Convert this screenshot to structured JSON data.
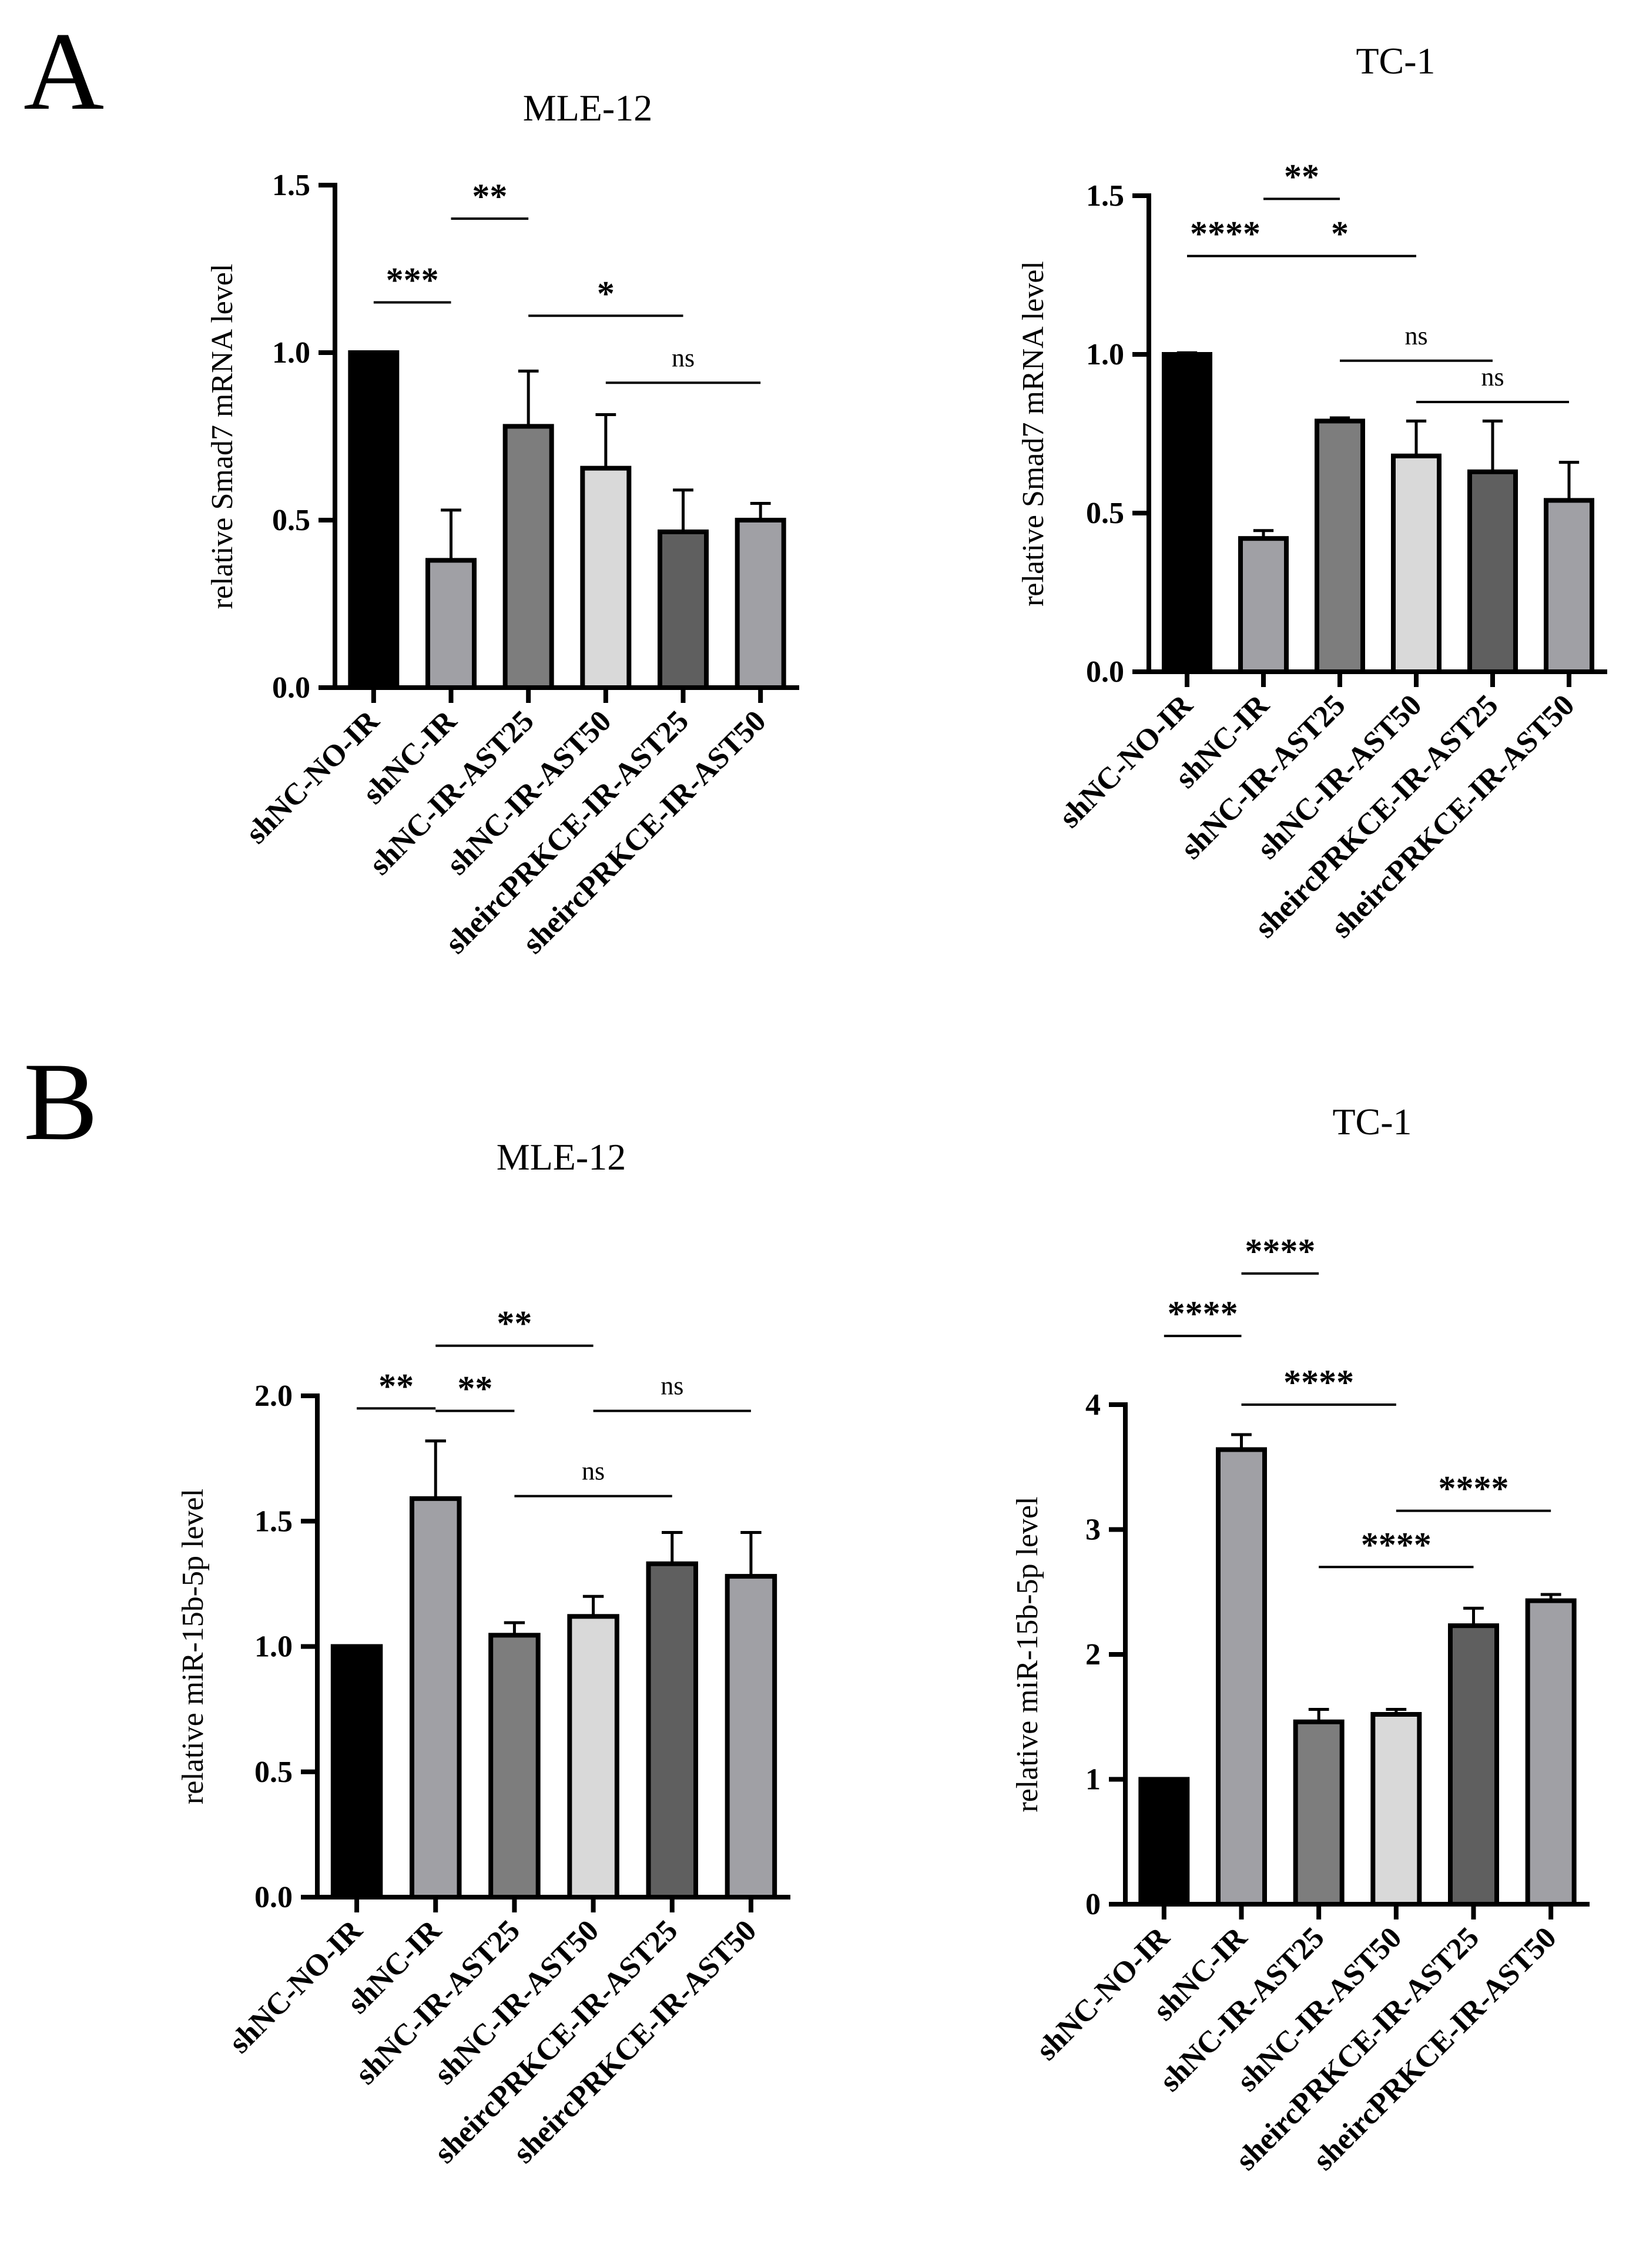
{
  "panels": [
    {
      "letter": "A"
    },
    {
      "letter": "B"
    }
  ],
  "chart_data": [
    {
      "type": "bar",
      "panel": "A",
      "title": "MLE-12",
      "ylabel": "relative Smad7 mRNA level",
      "xlabel": "",
      "ylim": [
        0,
        1.5
      ],
      "yticks": [
        0.0,
        0.5,
        1.0,
        1.5
      ],
      "ytick_labels": [
        "0.0",
        "0.5",
        "1.0",
        "1.5"
      ],
      "categories": [
        "shNC-NO-IR",
        "shNC-IR",
        "shNC-IR-AST25",
        "shNC-IR-AST50",
        "sheircPRKCE-IR-AST25",
        "sheircPRKCE-IR-AST50"
      ],
      "values": [
        1.0,
        0.38,
        0.78,
        0.655,
        0.465,
        0.5
      ],
      "errors": [
        0.0,
        0.15,
        0.165,
        0.16,
        0.125,
        0.05
      ],
      "colors": [
        "#000000",
        "#a0a0a5",
        "#7d7d7d",
        "#d9d9d9",
        "#5f5f5f",
        "#a0a0a5"
      ],
      "significance": [
        {
          "from": 0,
          "to": 1,
          "label": "***",
          "y": 1.15
        },
        {
          "from": 1,
          "to": 2,
          "label": "**",
          "y": 1.4
        },
        {
          "from": 2,
          "to": 4,
          "label": "*",
          "y": 1.11
        },
        {
          "from": 3,
          "to": 5,
          "label": "ns",
          "y": 0.91
        }
      ]
    },
    {
      "type": "bar",
      "panel": "A",
      "title": "TC-1",
      "ylabel": "relative Smad7 mRNA level",
      "xlabel": "",
      "ylim": [
        0,
        1.5
      ],
      "yticks": [
        0.0,
        0.5,
        1.0,
        1.5
      ],
      "ytick_labels": [
        "0.0",
        "0.5",
        "1.0",
        "1.5"
      ],
      "categories": [
        "shNC-NO-IR",
        "shNC-IR",
        "shNC-IR-AST25",
        "shNC-IR-AST50",
        "sheircPRKCE-IR-AST25",
        "sheircPRKCE-IR-AST50"
      ],
      "values": [
        1.0,
        0.42,
        0.79,
        0.68,
        0.63,
        0.54
      ],
      "errors": [
        0.005,
        0.025,
        0.01,
        0.11,
        0.16,
        0.12
      ],
      "colors": [
        "#000000",
        "#a0a0a5",
        "#7d7d7d",
        "#d9d9d9",
        "#5f5f5f",
        "#a0a0a5"
      ],
      "significance": [
        {
          "from": 0,
          "to": 1,
          "label": "****",
          "y": 1.31
        },
        {
          "from": 1,
          "to": 2,
          "label": "**",
          "y": 1.49
        },
        {
          "from": 1,
          "to": 3,
          "label": "*",
          "y": 1.31
        },
        {
          "from": 2,
          "to": 4,
          "label": "ns",
          "y": 0.98
        },
        {
          "from": 3,
          "to": 5,
          "label": "ns",
          "y": 0.85
        }
      ]
    },
    {
      "type": "bar",
      "panel": "B",
      "title": "MLE-12",
      "ylabel": "relative miR-15b-5p level",
      "xlabel": "",
      "ylim": [
        0,
        2.0
      ],
      "yticks": [
        0.0,
        0.5,
        1.0,
        1.5,
        2.0
      ],
      "ytick_labels": [
        "0.0",
        "0.5",
        "1.0",
        "1.5",
        "2.0"
      ],
      "categories": [
        "shNC-NO-IR",
        "shNC-IR",
        "shNC-IR-AST25",
        "shNC-IR-AST50",
        "sheircPRKCE-IR-AST25",
        "sheircPRKCE-IR-AST50"
      ],
      "values": [
        1.0,
        1.59,
        1.045,
        1.12,
        1.33,
        1.28
      ],
      "errors": [
        0.0,
        0.23,
        0.05,
        0.08,
        0.125,
        0.175
      ],
      "colors": [
        "#000000",
        "#a0a0a5",
        "#7d7d7d",
        "#d9d9d9",
        "#5f5f5f",
        "#a0a0a5"
      ],
      "significance": [
        {
          "from": 0,
          "to": 1,
          "label": "**",
          "y": 1.95
        },
        {
          "from": 1,
          "to": 2,
          "label": "**",
          "y": 1.94
        },
        {
          "from": 1,
          "to": 3,
          "label": "**",
          "y": 2.2
        },
        {
          "from": 2,
          "to": 4,
          "label": "ns",
          "y": 1.6
        },
        {
          "from": 3,
          "to": 5,
          "label": "ns",
          "y": 1.94
        }
      ]
    },
    {
      "type": "bar",
      "panel": "B",
      "title": "TC-1",
      "ylabel": "relative miR-15b-5p level",
      "xlabel": "",
      "ylim": [
        0,
        4
      ],
      "yticks": [
        0,
        1,
        2,
        3,
        4
      ],
      "ytick_labels": [
        "0",
        "1",
        "2",
        "3",
        "4"
      ],
      "categories": [
        "shNC-NO-IR",
        "shNC-IR",
        "shNC-IR-AST25",
        "shNC-IR-AST50",
        "sheircPRKCE-IR-AST25",
        "sheircPRKCE-IR-AST50"
      ],
      "values": [
        1.0,
        3.64,
        1.46,
        1.52,
        2.23,
        2.43
      ],
      "errors": [
        0.0,
        0.12,
        0.1,
        0.04,
        0.14,
        0.05
      ],
      "colors": [
        "#000000",
        "#a0a0a5",
        "#7d7d7d",
        "#d9d9d9",
        "#5f5f5f",
        "#a0a0a5"
      ],
      "significance": [
        {
          "from": 0,
          "to": 1,
          "label": "****",
          "y": 4.55
        },
        {
          "from": 1,
          "to": 2,
          "label": "****",
          "y": 5.05
        },
        {
          "from": 1,
          "to": 3,
          "label": "****",
          "y": 4.0
        },
        {
          "from": 2,
          "to": 4,
          "label": "****",
          "y": 2.7
        },
        {
          "from": 3,
          "to": 5,
          "label": "****",
          "y": 3.15
        }
      ]
    }
  ]
}
